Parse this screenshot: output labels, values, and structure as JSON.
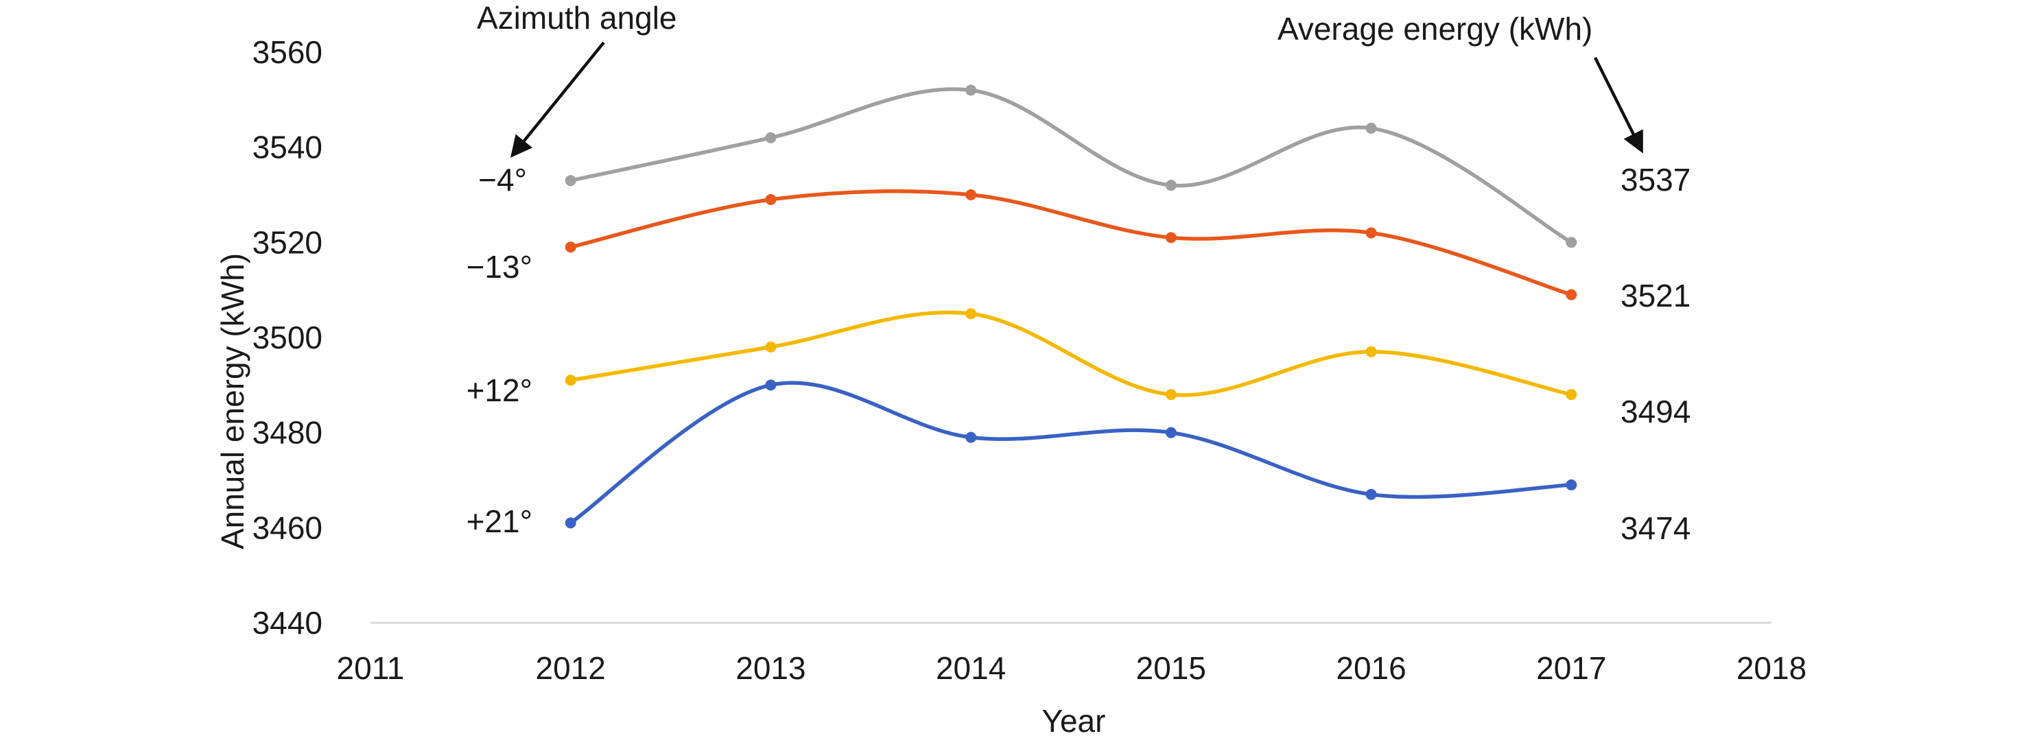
{
  "chart_data": {
    "type": "line",
    "title": "",
    "xlabel": "Year",
    "ylabel": "Annual energy (kWh)",
    "xlim": [
      2011,
      2018
    ],
    "ylim": [
      3440,
      3560
    ],
    "x_ticks": [
      2011,
      2012,
      2013,
      2014,
      2015,
      2016,
      2017,
      2018
    ],
    "y_ticks": [
      3440,
      3460,
      3480,
      3500,
      3520,
      3540,
      3560
    ],
    "grid": false,
    "x": [
      2012,
      2013,
      2014,
      2015,
      2016,
      2017
    ],
    "series": [
      {
        "name": "−4°",
        "color": "#a0a0a0",
        "values": [
          3533,
          3542,
          3552,
          3532,
          3544,
          3520
        ],
        "average": "3537"
      },
      {
        "name": "−13°",
        "color": "#e8581c",
        "values": [
          3519,
          3529,
          3530,
          3521,
          3522,
          3509
        ],
        "average": "3521"
      },
      {
        "name": "+12°",
        "color": "#f5b800",
        "values": [
          3491,
          3498,
          3505,
          3488,
          3497,
          3488
        ],
        "average": "3494"
      },
      {
        "name": "+21°",
        "color": "#3a62c4",
        "values": [
          3461,
          3490,
          3479,
          3480,
          3467,
          3469
        ],
        "average": "3474"
      }
    ],
    "annotations": {
      "left_header": "Azimuth angle",
      "right_header": "Average energy (kWh)"
    }
  }
}
